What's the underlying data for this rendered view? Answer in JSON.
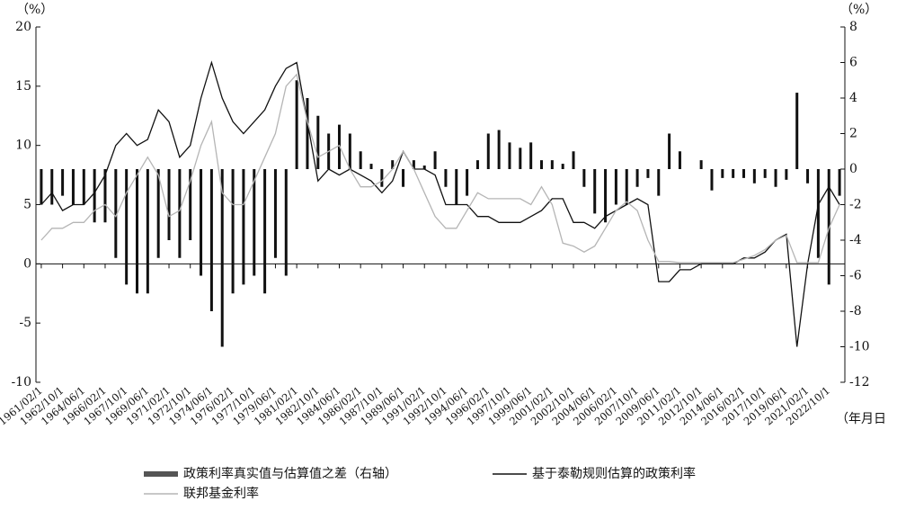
{
  "chart_data": {
    "type": "bar-line",
    "y_unit": "（%）",
    "y2_unit": "（%）",
    "x_unit": "（年月日",
    "categories": [
      "1961/02/1",
      null,
      "1962/10/1",
      null,
      "1964/06/1",
      null,
      "1966/02/1",
      null,
      "1967/10/1",
      null,
      "1969/06/1",
      null,
      "1971/02/1",
      null,
      "1972/10/1",
      null,
      "1974/06/1",
      null,
      "1976/02/1",
      null,
      "1977/10/1",
      null,
      "1979/06/1",
      null,
      "1981/02/1",
      null,
      "1982/10/1",
      null,
      "1984/06/1",
      null,
      "1986/02/1",
      null,
      "1987/10/1",
      null,
      "1989/06/1",
      null,
      "1991/02/1",
      null,
      "1992/10/1",
      null,
      "1994/06/1",
      null,
      "1996/02/1",
      null,
      "1997/10/1",
      null,
      "1999/06/1",
      null,
      "2001/02/1",
      null,
      "2002/10/1",
      null,
      "2004/06/1",
      null,
      "2006/02/1",
      null,
      "2007/10/1",
      null,
      "2009/06/1",
      null,
      "2011/02/1",
      null,
      "2012/10/1",
      null,
      "2014/06/1",
      null,
      "2016/02/1",
      null,
      "2017/10/1",
      null,
      "2019/06/1",
      null,
      "2021/02/1",
      null,
      "2022/10/1",
      null
    ],
    "series": [
      {
        "name": "政策利率真实值与估算值之差（右轴）",
        "type": "bar",
        "axis": "y2",
        "color": "#111111",
        "values": [
          -2,
          -2,
          -1.5,
          -2,
          -2,
          -3,
          -3,
          -5,
          -6.5,
          -7,
          -7,
          -5,
          -4,
          -5,
          -4,
          -6,
          -8,
          -10,
          -7,
          -6.5,
          -6,
          -7,
          -5,
          -6,
          5,
          4,
          3,
          2,
          2.5,
          2,
          1,
          0.3,
          -1,
          0.5,
          -1,
          0.5,
          0.2,
          1,
          -1,
          -2,
          -1.5,
          0.5,
          2,
          2.2,
          1.5,
          1.2,
          1.5,
          0.5,
          0.5,
          0.3,
          1,
          -1,
          -2.5,
          -3,
          -2,
          -2,
          -1,
          -0.5,
          -1.5,
          2,
          1,
          0,
          0.5,
          -1.2,
          -0.5,
          -0.5,
          -0.5,
          -0.8,
          -0.5,
          -1,
          -0.6,
          4.3,
          -0.8,
          -5,
          -6.5,
          -1.5
        ]
      },
      {
        "name": "基于泰勒规则估算的政策利率",
        "type": "line",
        "color": "#111111",
        "values": [
          5,
          6,
          4.5,
          5,
          5,
          6,
          7.5,
          10,
          11,
          10,
          10.5,
          13,
          12,
          9,
          10,
          14,
          17,
          14,
          12,
          11,
          12,
          13,
          15,
          16.5,
          17,
          12,
          7,
          8,
          7.5,
          8,
          7.5,
          7,
          6,
          7,
          9.5,
          8,
          8,
          7.5,
          5,
          5,
          5,
          4,
          4,
          3.5,
          3.5,
          3.5,
          4,
          4.5,
          5.5,
          5.5,
          3.5,
          3.5,
          3,
          4,
          4.5,
          5,
          5.5,
          5,
          -1.5,
          -1.5,
          -0.5,
          -0.5,
          0,
          0,
          0,
          0,
          0.5,
          0.5,
          1,
          2,
          2.5,
          -7,
          0,
          5,
          6.5,
          5
        ]
      },
      {
        "name": "联邦基金利率",
        "type": "line",
        "color": "#b5b5b5",
        "values": [
          2,
          3,
          3,
          3.5,
          3.5,
          4.5,
          5,
          4,
          6,
          7.5,
          9,
          7.5,
          4,
          4.5,
          7,
          10,
          12,
          6,
          5,
          5,
          7,
          9,
          11,
          15,
          16,
          12,
          9,
          9.5,
          10,
          8,
          6.5,
          6.5,
          7,
          8,
          9.5,
          8,
          6,
          4,
          3,
          3,
          4.5,
          6,
          5.5,
          5.5,
          5.5,
          5.5,
          5,
          6.5,
          5,
          1.75,
          1.5,
          1,
          1.5,
          3,
          4.5,
          5.25,
          4.5,
          2,
          0.2,
          0.2,
          0.1,
          0.1,
          0.1,
          0.1,
          0.1,
          0.1,
          0.4,
          0.7,
          1.2,
          2,
          2.4,
          0.1,
          0.1,
          0.1,
          3,
          5
        ]
      }
    ],
    "ylim": [
      -10,
      20
    ],
    "yticks": [
      -10,
      -5,
      0,
      5,
      10,
      15,
      20
    ],
    "y2lim": [
      -12,
      8
    ],
    "y2ticks": [
      -12,
      -10,
      -8,
      -6,
      -4,
      -2,
      0,
      2,
      4,
      6,
      8
    ]
  }
}
